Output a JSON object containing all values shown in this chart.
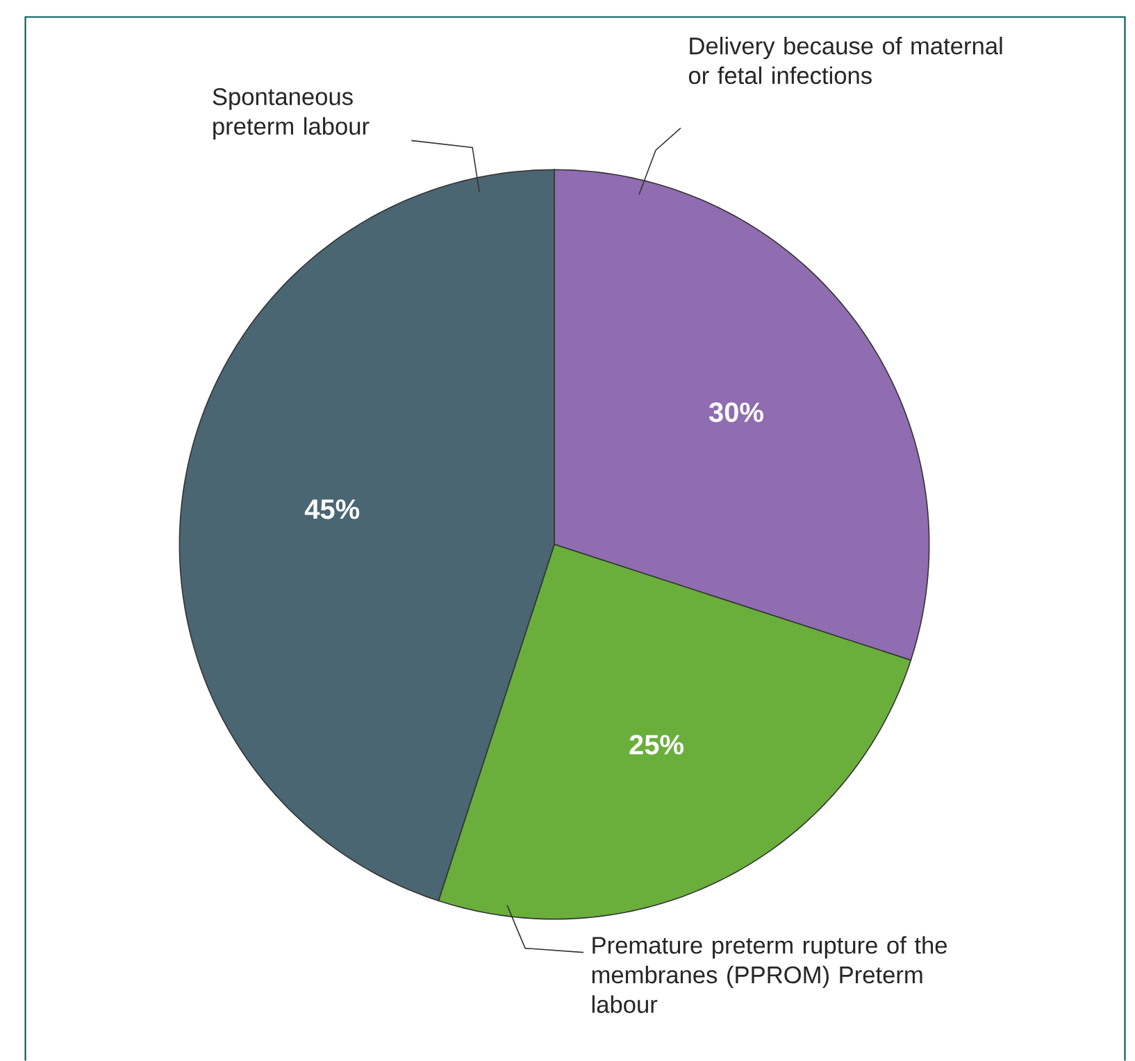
{
  "chart_data": {
    "type": "pie",
    "categories": [
      "Delivery because of maternal or fetal infections",
      "Premature preterm rupture of the membranes (PPROM) Preterm labour",
      "Spontaneous preterm labour"
    ],
    "values": [
      30,
      25,
      45
    ],
    "colors": [
      "#8f6db0",
      "#6aaf3c",
      "#4a6672"
    ],
    "value_labels": [
      "30%",
      "25%",
      "45%"
    ]
  }
}
